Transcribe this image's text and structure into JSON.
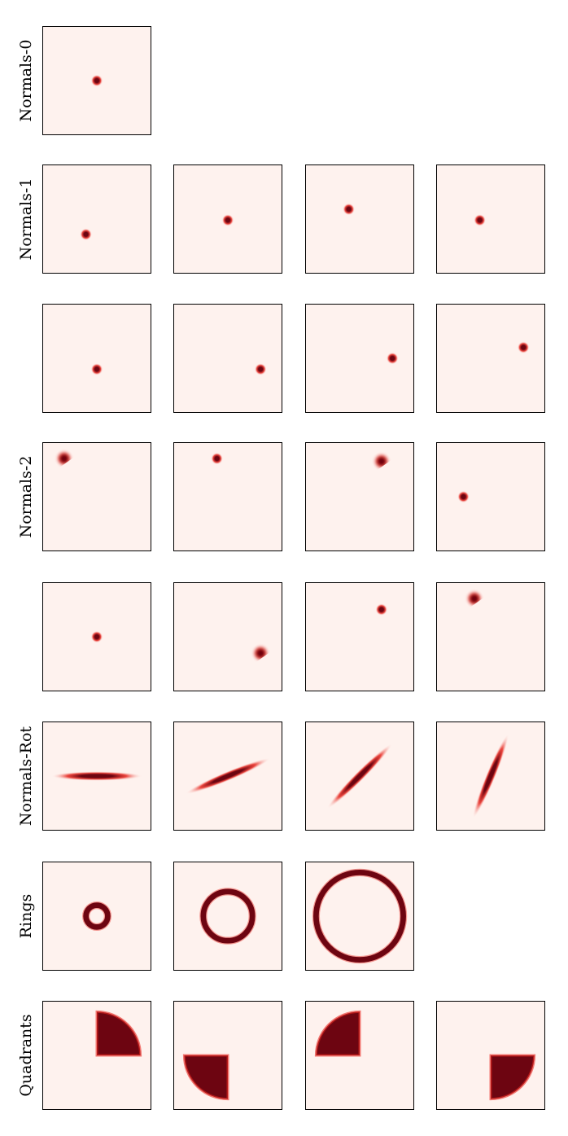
{
  "colors": {
    "background": "#fef2ee",
    "mid": "#e7271f",
    "dark": "#6d0511",
    "frame": "#000000"
  },
  "chart_data": {
    "type": "heatmap",
    "title": "",
    "axes": {
      "xlim": [
        -1,
        1
      ],
      "ylim": [
        -1,
        1
      ],
      "ticks": false,
      "grid": false
    },
    "rows": [
      {
        "label": "Normals-0",
        "panels": [
          {
            "shape": "gaussian",
            "center": [
              0,
              0
            ],
            "std": [
              0.05,
              0.05
            ],
            "angle": 0
          }
        ]
      },
      {
        "label": "Normals-1",
        "panels": [
          {
            "shape": "gaussian",
            "center": [
              -0.2,
              -0.28
            ],
            "std": [
              0.05,
              0.05
            ],
            "angle": 0
          },
          {
            "shape": "gaussian",
            "center": [
              0.0,
              -0.02
            ],
            "std": [
              0.05,
              0.05
            ],
            "angle": 0
          },
          {
            "shape": "gaussian",
            "center": [
              -0.2,
              0.18
            ],
            "std": [
              0.05,
              0.05
            ],
            "angle": 0
          },
          {
            "shape": "gaussian",
            "center": [
              -0.2,
              -0.02
            ],
            "std": [
              0.05,
              0.05
            ],
            "angle": 0
          }
        ]
      },
      {
        "label": "",
        "panels": [
          {
            "shape": "gaussian",
            "center": [
              0.0,
              -0.2
            ],
            "std": [
              0.05,
              0.05
            ],
            "angle": 0
          },
          {
            "shape": "gaussian",
            "center": [
              0.6,
              -0.2
            ],
            "std": [
              0.05,
              0.05
            ],
            "angle": 0
          },
          {
            "shape": "gaussian",
            "center": [
              0.6,
              0.0
            ],
            "std": [
              0.05,
              0.05
            ],
            "angle": 0
          },
          {
            "shape": "gaussian",
            "center": [
              0.6,
              0.2
            ],
            "std": [
              0.05,
              0.05
            ],
            "angle": 0
          }
        ]
      },
      {
        "label": "Normals-2",
        "panels": [
          {
            "shape": "clipped-gaussian",
            "center": [
              -0.6,
              0.7
            ],
            "std": [
              0.07,
              0.07
            ],
            "angle": 0
          },
          {
            "shape": "gaussian",
            "center": [
              -0.2,
              0.7
            ],
            "std": [
              0.05,
              0.05
            ],
            "angle": 0
          },
          {
            "shape": "clipped-gaussian",
            "center": [
              0.4,
              0.65
            ],
            "std": [
              0.07,
              0.07
            ],
            "angle": 0
          },
          {
            "shape": "gaussian",
            "center": [
              -0.5,
              0.0
            ],
            "std": [
              0.05,
              0.05
            ],
            "angle": 0
          }
        ]
      },
      {
        "label": "",
        "panels": [
          {
            "shape": "gaussian",
            "center": [
              0.0,
              0.0
            ],
            "std": [
              0.05,
              0.05
            ],
            "angle": 0
          },
          {
            "shape": "clipped-gaussian",
            "center": [
              0.6,
              -0.3
            ],
            "std": [
              0.07,
              0.07
            ],
            "angle": 0
          },
          {
            "shape": "gaussian",
            "center": [
              0.4,
              0.5
            ],
            "std": [
              0.05,
              0.05
            ],
            "angle": 0
          },
          {
            "shape": "clipped-gaussian",
            "center": [
              -0.3,
              0.7
            ],
            "std": [
              0.07,
              0.07
            ],
            "angle": 0
          }
        ]
      },
      {
        "label": "Normals-Rot",
        "panels": [
          {
            "shape": "gaussian",
            "center": [
              0,
              0
            ],
            "std": [
              0.38,
              0.04
            ],
            "angle": 0
          },
          {
            "shape": "gaussian",
            "center": [
              0,
              0
            ],
            "std": [
              0.38,
              0.04
            ],
            "angle": 22.5
          },
          {
            "shape": "gaussian",
            "center": [
              0,
              0
            ],
            "std": [
              0.38,
              0.04
            ],
            "angle": 45
          },
          {
            "shape": "gaussian",
            "center": [
              0,
              0
            ],
            "std": [
              0.38,
              0.04
            ],
            "angle": 67.5
          }
        ]
      },
      {
        "label": "Rings",
        "panels": [
          {
            "shape": "ring",
            "center": [
              0,
              0
            ],
            "radius": 0.2,
            "width": 0.05
          },
          {
            "shape": "ring",
            "center": [
              0,
              0
            ],
            "radius": 0.45,
            "width": 0.05
          },
          {
            "shape": "ring",
            "center": [
              0,
              0
            ],
            "radius": 0.8,
            "width": 0.05
          }
        ]
      },
      {
        "label": "Quadrants",
        "panels": [
          {
            "shape": "quadrant",
            "quadrant": "top-right",
            "radius": 0.8
          },
          {
            "shape": "quadrant",
            "quadrant": "bottom-left",
            "radius": 0.8
          },
          {
            "shape": "quadrant",
            "quadrant": "top-left",
            "radius": 0.8
          },
          {
            "shape": "quadrant",
            "quadrant": "bottom-right",
            "radius": 0.8
          }
        ]
      }
    ]
  }
}
